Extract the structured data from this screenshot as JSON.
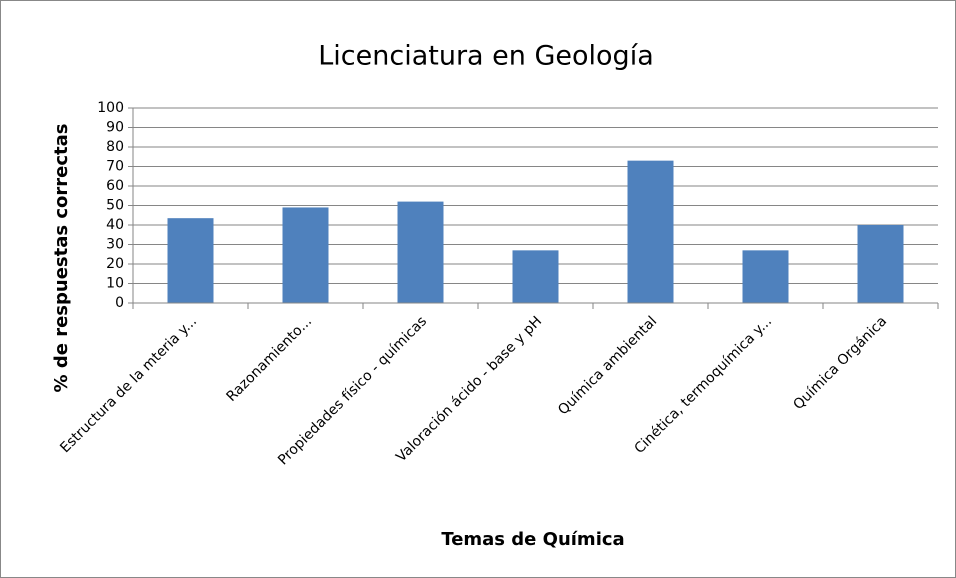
{
  "chart_data": {
    "type": "bar",
    "title": "Licenciatura en Geología",
    "x_label": "Temas de Química",
    "y_label": "% de respuestas correctas",
    "categories": [
      "Estructura de la mteria y...",
      "Razonamiento...",
      "Propiedades físico - químicas",
      "Valoración ácido - base y pH",
      "Química ambiental",
      "Cinética, termoquímica y...",
      "Química Orgánica"
    ],
    "values": [
      43.5,
      49,
      52,
      27,
      73,
      27,
      40
    ],
    "color": "#4f81bd",
    "ylim": [
      0,
      100
    ],
    "yticks": [
      0,
      10,
      20,
      30,
      40,
      50,
      60,
      70,
      80,
      90,
      100
    ],
    "grid": true
  }
}
